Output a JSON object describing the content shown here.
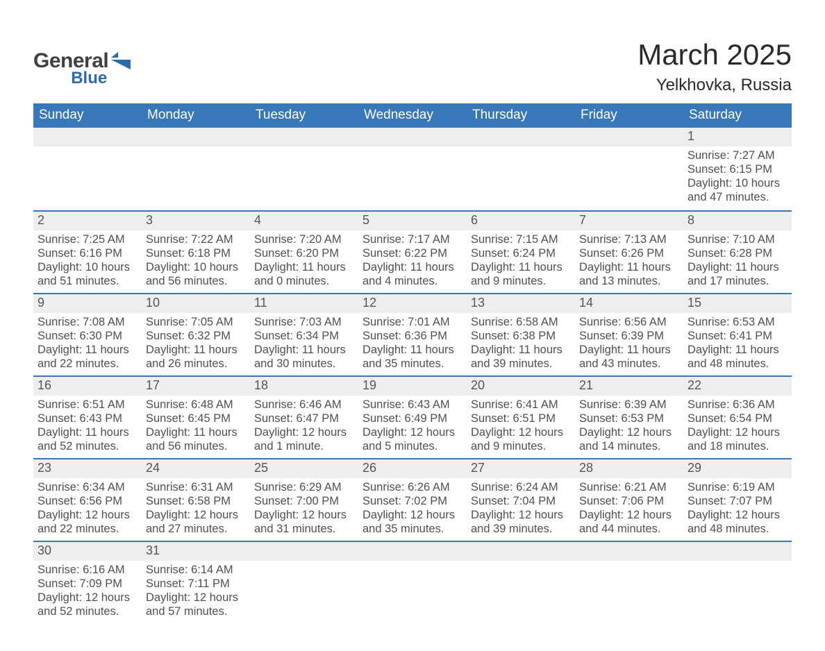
{
  "brand": {
    "word1": "General",
    "word2": "Blue",
    "text_color": "#404040",
    "accent_color": "#2f6aa8"
  },
  "title": "March 2025",
  "location": "Yelkhovka, Russia",
  "colors": {
    "header_bg": "#3978b8",
    "header_text": "#ffffff",
    "daybar_bg": "#eeeeee",
    "daybar_border": "#3978b8",
    "body_text": "#505050",
    "daynum_text": "#555555",
    "page_bg": "#ffffff"
  },
  "typography": {
    "title_fontsize": 42,
    "location_fontsize": 24,
    "header_fontsize": 19,
    "daynum_fontsize": 18,
    "body_fontsize": 16.5
  },
  "columns": [
    "Sunday",
    "Monday",
    "Tuesday",
    "Wednesday",
    "Thursday",
    "Friday",
    "Saturday"
  ],
  "weeks": [
    [
      {
        "empty": true
      },
      {
        "empty": true
      },
      {
        "empty": true
      },
      {
        "empty": true
      },
      {
        "empty": true
      },
      {
        "empty": true
      },
      {
        "day": "1",
        "sunrise": "Sunrise: 7:27 AM",
        "sunset": "Sunset: 6:15 PM",
        "day1": "Daylight: 10 hours",
        "day2": "and 47 minutes."
      }
    ],
    [
      {
        "day": "2",
        "sunrise": "Sunrise: 7:25 AM",
        "sunset": "Sunset: 6:16 PM",
        "day1": "Daylight: 10 hours",
        "day2": "and 51 minutes."
      },
      {
        "day": "3",
        "sunrise": "Sunrise: 7:22 AM",
        "sunset": "Sunset: 6:18 PM",
        "day1": "Daylight: 10 hours",
        "day2": "and 56 minutes."
      },
      {
        "day": "4",
        "sunrise": "Sunrise: 7:20 AM",
        "sunset": "Sunset: 6:20 PM",
        "day1": "Daylight: 11 hours",
        "day2": "and 0 minutes."
      },
      {
        "day": "5",
        "sunrise": "Sunrise: 7:17 AM",
        "sunset": "Sunset: 6:22 PM",
        "day1": "Daylight: 11 hours",
        "day2": "and 4 minutes."
      },
      {
        "day": "6",
        "sunrise": "Sunrise: 7:15 AM",
        "sunset": "Sunset: 6:24 PM",
        "day1": "Daylight: 11 hours",
        "day2": "and 9 minutes."
      },
      {
        "day": "7",
        "sunrise": "Sunrise: 7:13 AM",
        "sunset": "Sunset: 6:26 PM",
        "day1": "Daylight: 11 hours",
        "day2": "and 13 minutes."
      },
      {
        "day": "8",
        "sunrise": "Sunrise: 7:10 AM",
        "sunset": "Sunset: 6:28 PM",
        "day1": "Daylight: 11 hours",
        "day2": "and 17 minutes."
      }
    ],
    [
      {
        "day": "9",
        "sunrise": "Sunrise: 7:08 AM",
        "sunset": "Sunset: 6:30 PM",
        "day1": "Daylight: 11 hours",
        "day2": "and 22 minutes."
      },
      {
        "day": "10",
        "sunrise": "Sunrise: 7:05 AM",
        "sunset": "Sunset: 6:32 PM",
        "day1": "Daylight: 11 hours",
        "day2": "and 26 minutes."
      },
      {
        "day": "11",
        "sunrise": "Sunrise: 7:03 AM",
        "sunset": "Sunset: 6:34 PM",
        "day1": "Daylight: 11 hours",
        "day2": "and 30 minutes."
      },
      {
        "day": "12",
        "sunrise": "Sunrise: 7:01 AM",
        "sunset": "Sunset: 6:36 PM",
        "day1": "Daylight: 11 hours",
        "day2": "and 35 minutes."
      },
      {
        "day": "13",
        "sunrise": "Sunrise: 6:58 AM",
        "sunset": "Sunset: 6:38 PM",
        "day1": "Daylight: 11 hours",
        "day2": "and 39 minutes."
      },
      {
        "day": "14",
        "sunrise": "Sunrise: 6:56 AM",
        "sunset": "Sunset: 6:39 PM",
        "day1": "Daylight: 11 hours",
        "day2": "and 43 minutes."
      },
      {
        "day": "15",
        "sunrise": "Sunrise: 6:53 AM",
        "sunset": "Sunset: 6:41 PM",
        "day1": "Daylight: 11 hours",
        "day2": "and 48 minutes."
      }
    ],
    [
      {
        "day": "16",
        "sunrise": "Sunrise: 6:51 AM",
        "sunset": "Sunset: 6:43 PM",
        "day1": "Daylight: 11 hours",
        "day2": "and 52 minutes."
      },
      {
        "day": "17",
        "sunrise": "Sunrise: 6:48 AM",
        "sunset": "Sunset: 6:45 PM",
        "day1": "Daylight: 11 hours",
        "day2": "and 56 minutes."
      },
      {
        "day": "18",
        "sunrise": "Sunrise: 6:46 AM",
        "sunset": "Sunset: 6:47 PM",
        "day1": "Daylight: 12 hours",
        "day2": "and 1 minute."
      },
      {
        "day": "19",
        "sunrise": "Sunrise: 6:43 AM",
        "sunset": "Sunset: 6:49 PM",
        "day1": "Daylight: 12 hours",
        "day2": "and 5 minutes."
      },
      {
        "day": "20",
        "sunrise": "Sunrise: 6:41 AM",
        "sunset": "Sunset: 6:51 PM",
        "day1": "Daylight: 12 hours",
        "day2": "and 9 minutes."
      },
      {
        "day": "21",
        "sunrise": "Sunrise: 6:39 AM",
        "sunset": "Sunset: 6:53 PM",
        "day1": "Daylight: 12 hours",
        "day2": "and 14 minutes."
      },
      {
        "day": "22",
        "sunrise": "Sunrise: 6:36 AM",
        "sunset": "Sunset: 6:54 PM",
        "day1": "Daylight: 12 hours",
        "day2": "and 18 minutes."
      }
    ],
    [
      {
        "day": "23",
        "sunrise": "Sunrise: 6:34 AM",
        "sunset": "Sunset: 6:56 PM",
        "day1": "Daylight: 12 hours",
        "day2": "and 22 minutes."
      },
      {
        "day": "24",
        "sunrise": "Sunrise: 6:31 AM",
        "sunset": "Sunset: 6:58 PM",
        "day1": "Daylight: 12 hours",
        "day2": "and 27 minutes."
      },
      {
        "day": "25",
        "sunrise": "Sunrise: 6:29 AM",
        "sunset": "Sunset: 7:00 PM",
        "day1": "Daylight: 12 hours",
        "day2": "and 31 minutes."
      },
      {
        "day": "26",
        "sunrise": "Sunrise: 6:26 AM",
        "sunset": "Sunset: 7:02 PM",
        "day1": "Daylight: 12 hours",
        "day2": "and 35 minutes."
      },
      {
        "day": "27",
        "sunrise": "Sunrise: 6:24 AM",
        "sunset": "Sunset: 7:04 PM",
        "day1": "Daylight: 12 hours",
        "day2": "and 39 minutes."
      },
      {
        "day": "28",
        "sunrise": "Sunrise: 6:21 AM",
        "sunset": "Sunset: 7:06 PM",
        "day1": "Daylight: 12 hours",
        "day2": "and 44 minutes."
      },
      {
        "day": "29",
        "sunrise": "Sunrise: 6:19 AM",
        "sunset": "Sunset: 7:07 PM",
        "day1": "Daylight: 12 hours",
        "day2": "and 48 minutes."
      }
    ],
    [
      {
        "day": "30",
        "sunrise": "Sunrise: 6:16 AM",
        "sunset": "Sunset: 7:09 PM",
        "day1": "Daylight: 12 hours",
        "day2": "and 52 minutes."
      },
      {
        "day": "31",
        "sunrise": "Sunrise: 6:14 AM",
        "sunset": "Sunset: 7:11 PM",
        "day1": "Daylight: 12 hours",
        "day2": "and 57 minutes."
      },
      {
        "empty": true
      },
      {
        "empty": true
      },
      {
        "empty": true
      },
      {
        "empty": true
      },
      {
        "empty": true
      }
    ]
  ]
}
